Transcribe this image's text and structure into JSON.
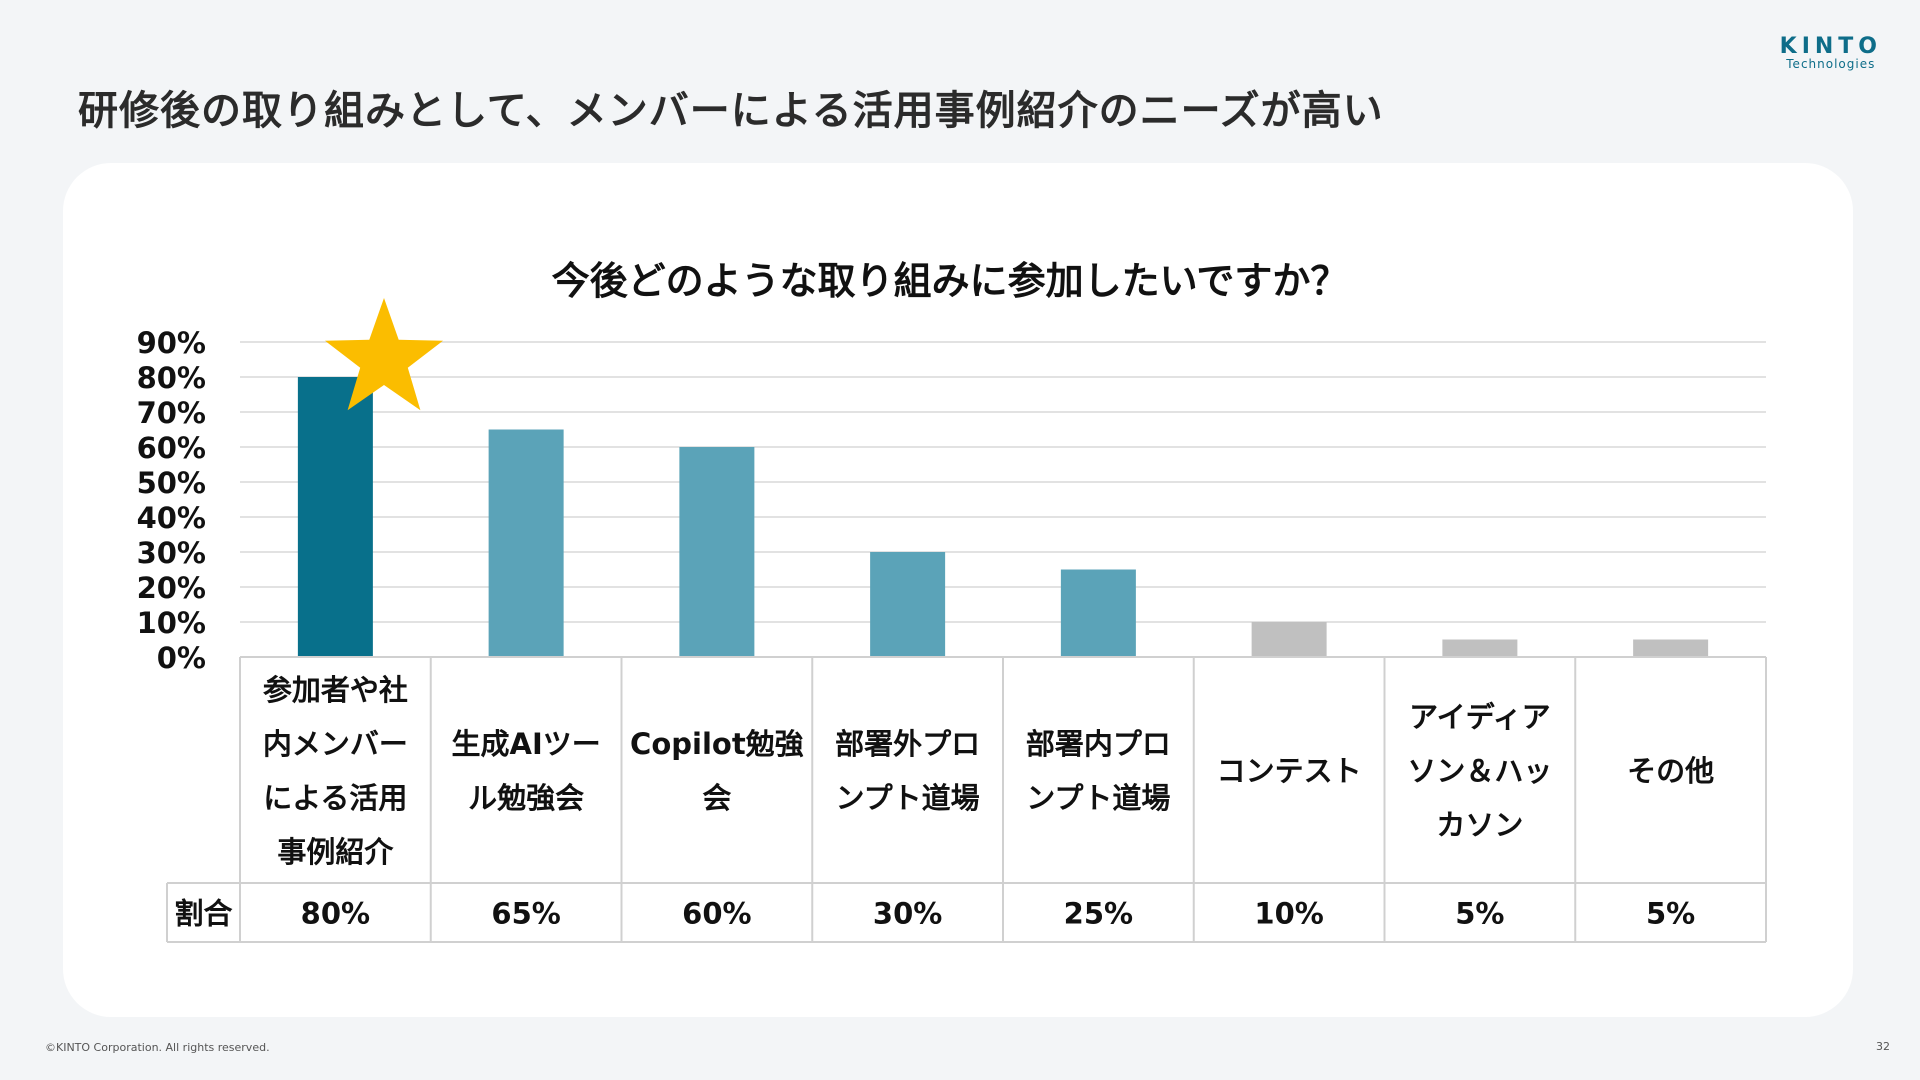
{
  "slide": {
    "title": "研修後の取り組みとして、メンバーによる活用事例紹介のニーズが高い",
    "brand_name": "KINTO",
    "brand_sub": "Technologies",
    "copyright": "©KINTO Corporation. All rights reserved.",
    "page_number": "32"
  },
  "colors": {
    "highlight": "#08708b",
    "primary": "#5ba3b8",
    "minor": "#c0c0c0",
    "star": "#fbbd00",
    "grid": "#d9d9d9"
  },
  "chart_data": {
    "type": "bar",
    "title": "今後どのような取り組みに参加したいですか？",
    "categories": [
      [
        "参加者や社",
        "内メンバー",
        "による活用",
        "事例紹介"
      ],
      [
        "生成AIツー",
        "ル勉強会"
      ],
      [
        "Copilot勉強",
        "会"
      ],
      [
        "部署外プロ",
        "ンプト道場"
      ],
      [
        "部署内プロ",
        "ンプト道場"
      ],
      [
        "コンテスト"
      ],
      [
        "アイディア",
        "ソン＆ハッ",
        "カソン"
      ],
      [
        "その他"
      ]
    ],
    "values": [
      80,
      65,
      60,
      30,
      25,
      10,
      5,
      5
    ],
    "value_labels": [
      "80%",
      "65%",
      "60%",
      "30%",
      "25%",
      "10%",
      "5%",
      "5%"
    ],
    "bar_color_keys": [
      "highlight",
      "primary",
      "primary",
      "primary",
      "primary",
      "minor",
      "minor",
      "minor"
    ],
    "ylim": [
      0,
      90
    ],
    "yticks": [
      "0%",
      "10%",
      "20%",
      "30%",
      "40%",
      "50%",
      "60%",
      "70%",
      "80%",
      "90%"
    ],
    "ytick_values": [
      0,
      10,
      20,
      30,
      40,
      50,
      60,
      70,
      80,
      90
    ],
    "table_row_label": "割合",
    "grid": true,
    "legend": "none",
    "highlight_marker": "star-icon"
  }
}
